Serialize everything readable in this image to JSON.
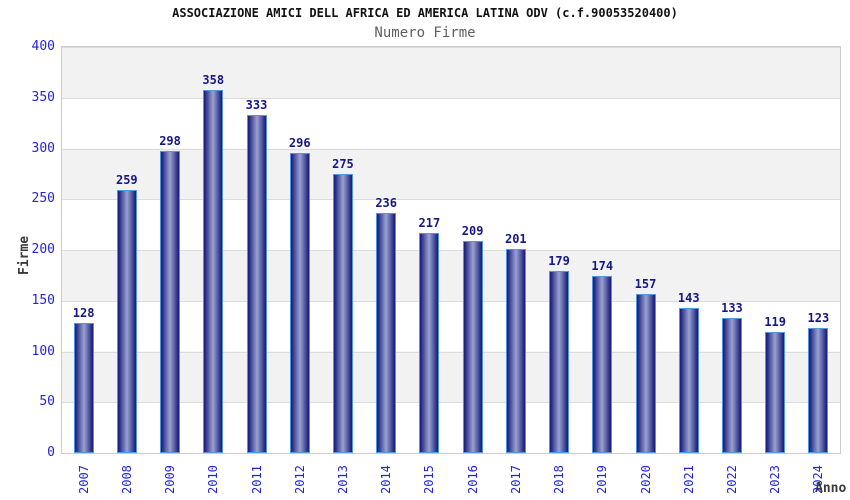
{
  "header": {
    "title": "ASSOCIAZIONE AMICI DELL AFRICA ED AMERICA LATINA ODV (c.f.90053520400)",
    "subtitle": "Numero Firme"
  },
  "chart_data": {
    "type": "bar",
    "title": "ASSOCIAZIONE AMICI DELL AFRICA ED AMERICA LATINA ODV (c.f.90053520400)",
    "subtitle": "Numero Firme",
    "xlabel": "Anno",
    "ylabel": "Firme",
    "categories": [
      "2007",
      "2008",
      "2009",
      "2010",
      "2011",
      "2012",
      "2013",
      "2014",
      "2015",
      "2016",
      "2017",
      "2018",
      "2019",
      "2020",
      "2021",
      "2022",
      "2023",
      "2024"
    ],
    "values": [
      128,
      259,
      298,
      358,
      333,
      296,
      275,
      236,
      217,
      209,
      201,
      179,
      174,
      157,
      143,
      133,
      119,
      123
    ],
    "ylim": [
      0,
      400
    ],
    "ytick_step": 50,
    "grid": true,
    "legend": false,
    "bands_alternating": true
  },
  "colors": {
    "bar_edge": "#141879",
    "bar_center": "#9aa2cf",
    "bar_border": "#4f97e3",
    "value_label": "#161685",
    "tick_label": "#2323dd",
    "band_gray": "#f2f2f2",
    "band_white": "#ffffff",
    "grid_line": "#dcdcdc",
    "title_text": "#111111",
    "subtitle_text": "#5f5f5f",
    "axis_name_text": "#3a3a3a"
  }
}
